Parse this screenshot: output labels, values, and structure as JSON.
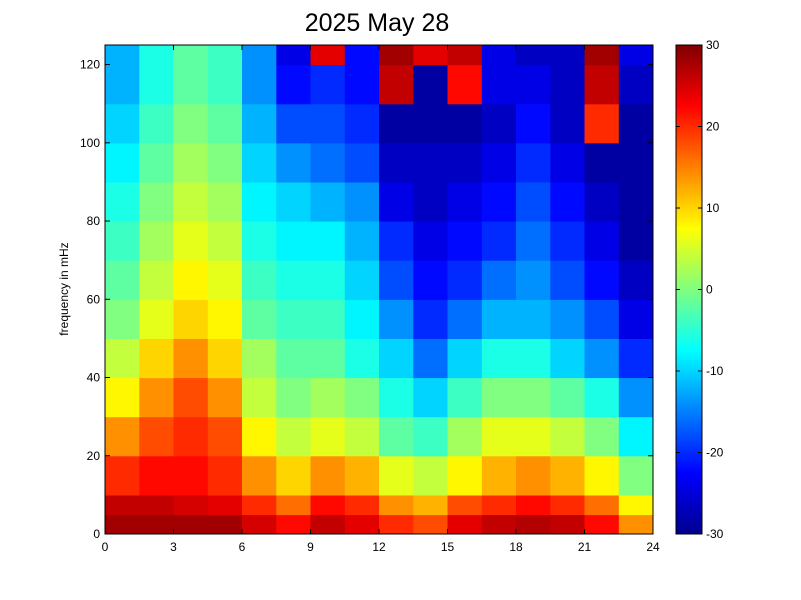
{
  "chart_data": {
    "type": "heatmap",
    "title": "2025 May 28",
    "xlabel": "",
    "ylabel": "frequency in mHz",
    "xlim": [
      0,
      24
    ],
    "ylim": [
      0,
      125
    ],
    "xticks": [
      "0",
      "3",
      "6",
      "9",
      "12",
      "15",
      "18",
      "21",
      "24"
    ],
    "yticks": [
      "0",
      "20",
      "40",
      "60",
      "80",
      "100",
      "120"
    ],
    "colorbar": {
      "range": [
        -30,
        30
      ],
      "ticks": [
        "30",
        "20",
        "10",
        "0",
        "-10",
        "-20",
        "-30"
      ],
      "colormap": "jet"
    },
    "grid": {
      "hours": [
        0,
        1.5,
        3,
        4.5,
        6,
        7.5,
        9,
        10.5,
        12,
        13.5,
        15,
        16.5,
        18,
        19.5,
        21,
        22.5
      ],
      "freqs_mHz": [
        0,
        5,
        10,
        20,
        30,
        40,
        50,
        60,
        70,
        80,
        90,
        100,
        110,
        120
      ],
      "values_dB": [
        [
          28,
          28,
          28,
          28,
          25,
          22,
          26,
          24,
          20,
          18,
          24,
          26,
          27,
          26,
          22,
          14
        ],
        [
          26,
          26,
          25,
          24,
          20,
          16,
          22,
          20,
          14,
          12,
          18,
          20,
          22,
          20,
          16,
          8
        ],
        [
          20,
          22,
          22,
          20,
          14,
          10,
          14,
          12,
          6,
          4,
          8,
          12,
          14,
          12,
          8,
          0
        ],
        [
          14,
          18,
          20,
          18,
          8,
          4,
          6,
          4,
          -2,
          -4,
          2,
          6,
          6,
          4,
          0,
          -8
        ],
        [
          8,
          14,
          18,
          14,
          4,
          0,
          2,
          0,
          -6,
          -10,
          -4,
          0,
          0,
          -2,
          -6,
          -14
        ],
        [
          4,
          10,
          14,
          10,
          2,
          -2,
          -2,
          -6,
          -10,
          -16,
          -10,
          -6,
          -6,
          -10,
          -14,
          -20
        ],
        [
          0,
          6,
          10,
          8,
          -2,
          -4,
          -4,
          -8,
          -14,
          -20,
          -16,
          -12,
          -12,
          -14,
          -18,
          -24
        ],
        [
          -2,
          4,
          8,
          6,
          -4,
          -6,
          -6,
          -10,
          -18,
          -22,
          -20,
          -16,
          -14,
          -18,
          -22,
          -26
        ],
        [
          -4,
          2,
          6,
          4,
          -6,
          -8,
          -8,
          -12,
          -20,
          -24,
          -22,
          -20,
          -16,
          -20,
          -24,
          -28
        ],
        [
          -6,
          0,
          4,
          2,
          -8,
          -10,
          -12,
          -14,
          -24,
          -26,
          -24,
          -22,
          -18,
          -22,
          -26,
          -28
        ],
        [
          -8,
          -2,
          2,
          0,
          -10,
          -14,
          -16,
          -18,
          -26,
          -26,
          -26,
          -24,
          -20,
          -24,
          -28,
          -28
        ],
        [
          -10,
          -4,
          0,
          -2,
          -12,
          -18,
          -18,
          -20,
          -28,
          -28,
          -28,
          -26,
          -22,
          -26,
          20,
          -28
        ],
        [
          -12,
          -6,
          -2,
          -4,
          -14,
          -22,
          -20,
          -22,
          26,
          -28,
          22,
          -24,
          -24,
          -26,
          26,
          -26
        ],
        [
          -12,
          -6,
          -2,
          -4,
          -14,
          -24,
          24,
          -22,
          28,
          24,
          26,
          -24,
          -26,
          -26,
          28,
          -24
        ]
      ]
    }
  }
}
